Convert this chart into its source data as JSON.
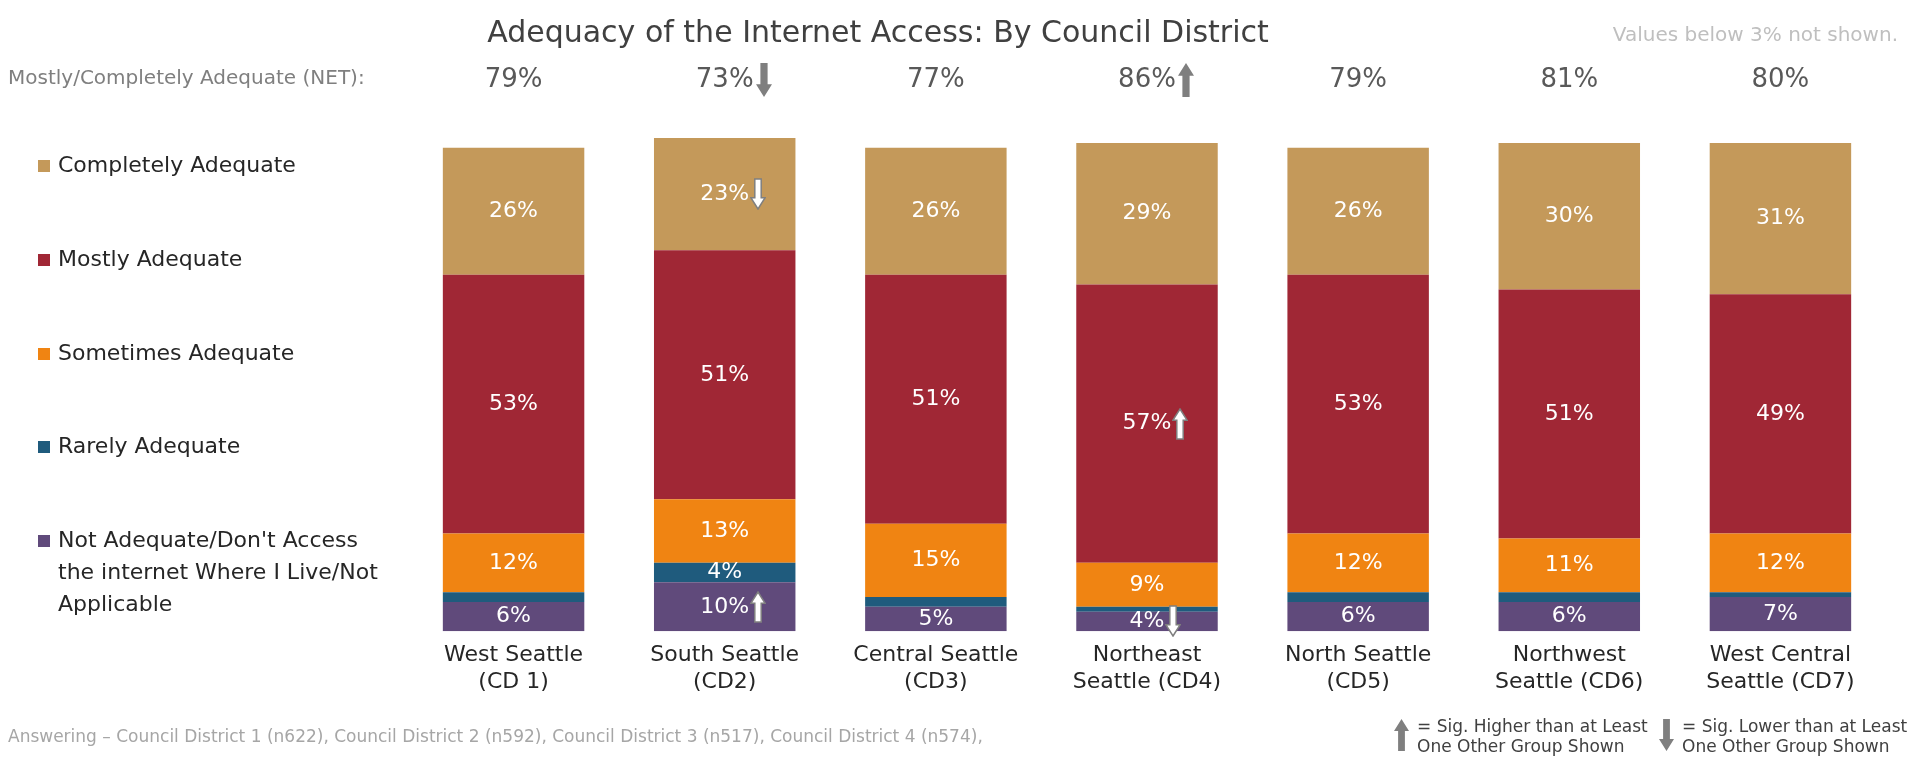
{
  "chart_data": {
    "type": "bar",
    "title": "Adequacy of the Internet Access: By Council District",
    "categories": [
      "West Seattle (CD 1)",
      "South Seattle (CD2)",
      "Central Seattle (CD3)",
      "Northeast Seattle (CD4)",
      "North Seattle (CD5)",
      "Northwest Seattle (CD6)",
      "West Central Seattle (CD7)"
    ],
    "stacked": true,
    "ylim": [
      0,
      101
    ],
    "tick_labels": "x",
    "legend": "left",
    "grid": false,
    "series": [
      {
        "name": "Not Adequate/Don't Access the internet Where I Live/Not Applicable",
        "color": "#604a7b",
        "values": [
          6,
          10,
          5,
          4,
          6,
          6,
          7
        ],
        "value_labels": [
          "6%",
          "10%",
          "5%",
          "4%",
          "6%",
          "6%",
          "7%"
        ]
      },
      {
        "name": "Rarely Adequate",
        "color": "#1f5b7d",
        "values": [
          2,
          4,
          2,
          1,
          2,
          2,
          1
        ],
        "value_labels": [
          null,
          "4%",
          null,
          null,
          null,
          null,
          null
        ]
      },
      {
        "name": "Sometimes Adequate",
        "color": "#f08412",
        "values": [
          12,
          13,
          15,
          9,
          12,
          11,
          12
        ],
        "value_labels": [
          "12%",
          "13%",
          "15%",
          "9%",
          "12%",
          "11%",
          "12%"
        ]
      },
      {
        "name": "Mostly Adequate",
        "color": "#a02735",
        "values": [
          53,
          51,
          51,
          57,
          53,
          51,
          49
        ],
        "value_labels": [
          "53%",
          "51%",
          "51%",
          "57%",
          "53%",
          "51%",
          "49%"
        ]
      },
      {
        "name": "Completely Adequate",
        "color": "#c4995a",
        "values": [
          26,
          23,
          26,
          29,
          26,
          30,
          31
        ],
        "value_labels": [
          "26%",
          "23%",
          "26%",
          "29%",
          "26%",
          "30%",
          "31%"
        ]
      }
    ],
    "annotations": [
      "Mostly/Completely Adequate (NET):",
      "Values below 3% not shown.",
      "Answering – Council District 1 (n622), Council District 2 (n592), Council District 3 (n517), Council District 4 (n574),",
      "= Sig. Higher than at Least One Other Group Shown",
      "= Sig. Lower than at Least One Other Group Shown",
      "79%",
      "73%",
      "77%",
      "86%",
      "79%",
      "81%",
      "80%"
    ]
  }
}
